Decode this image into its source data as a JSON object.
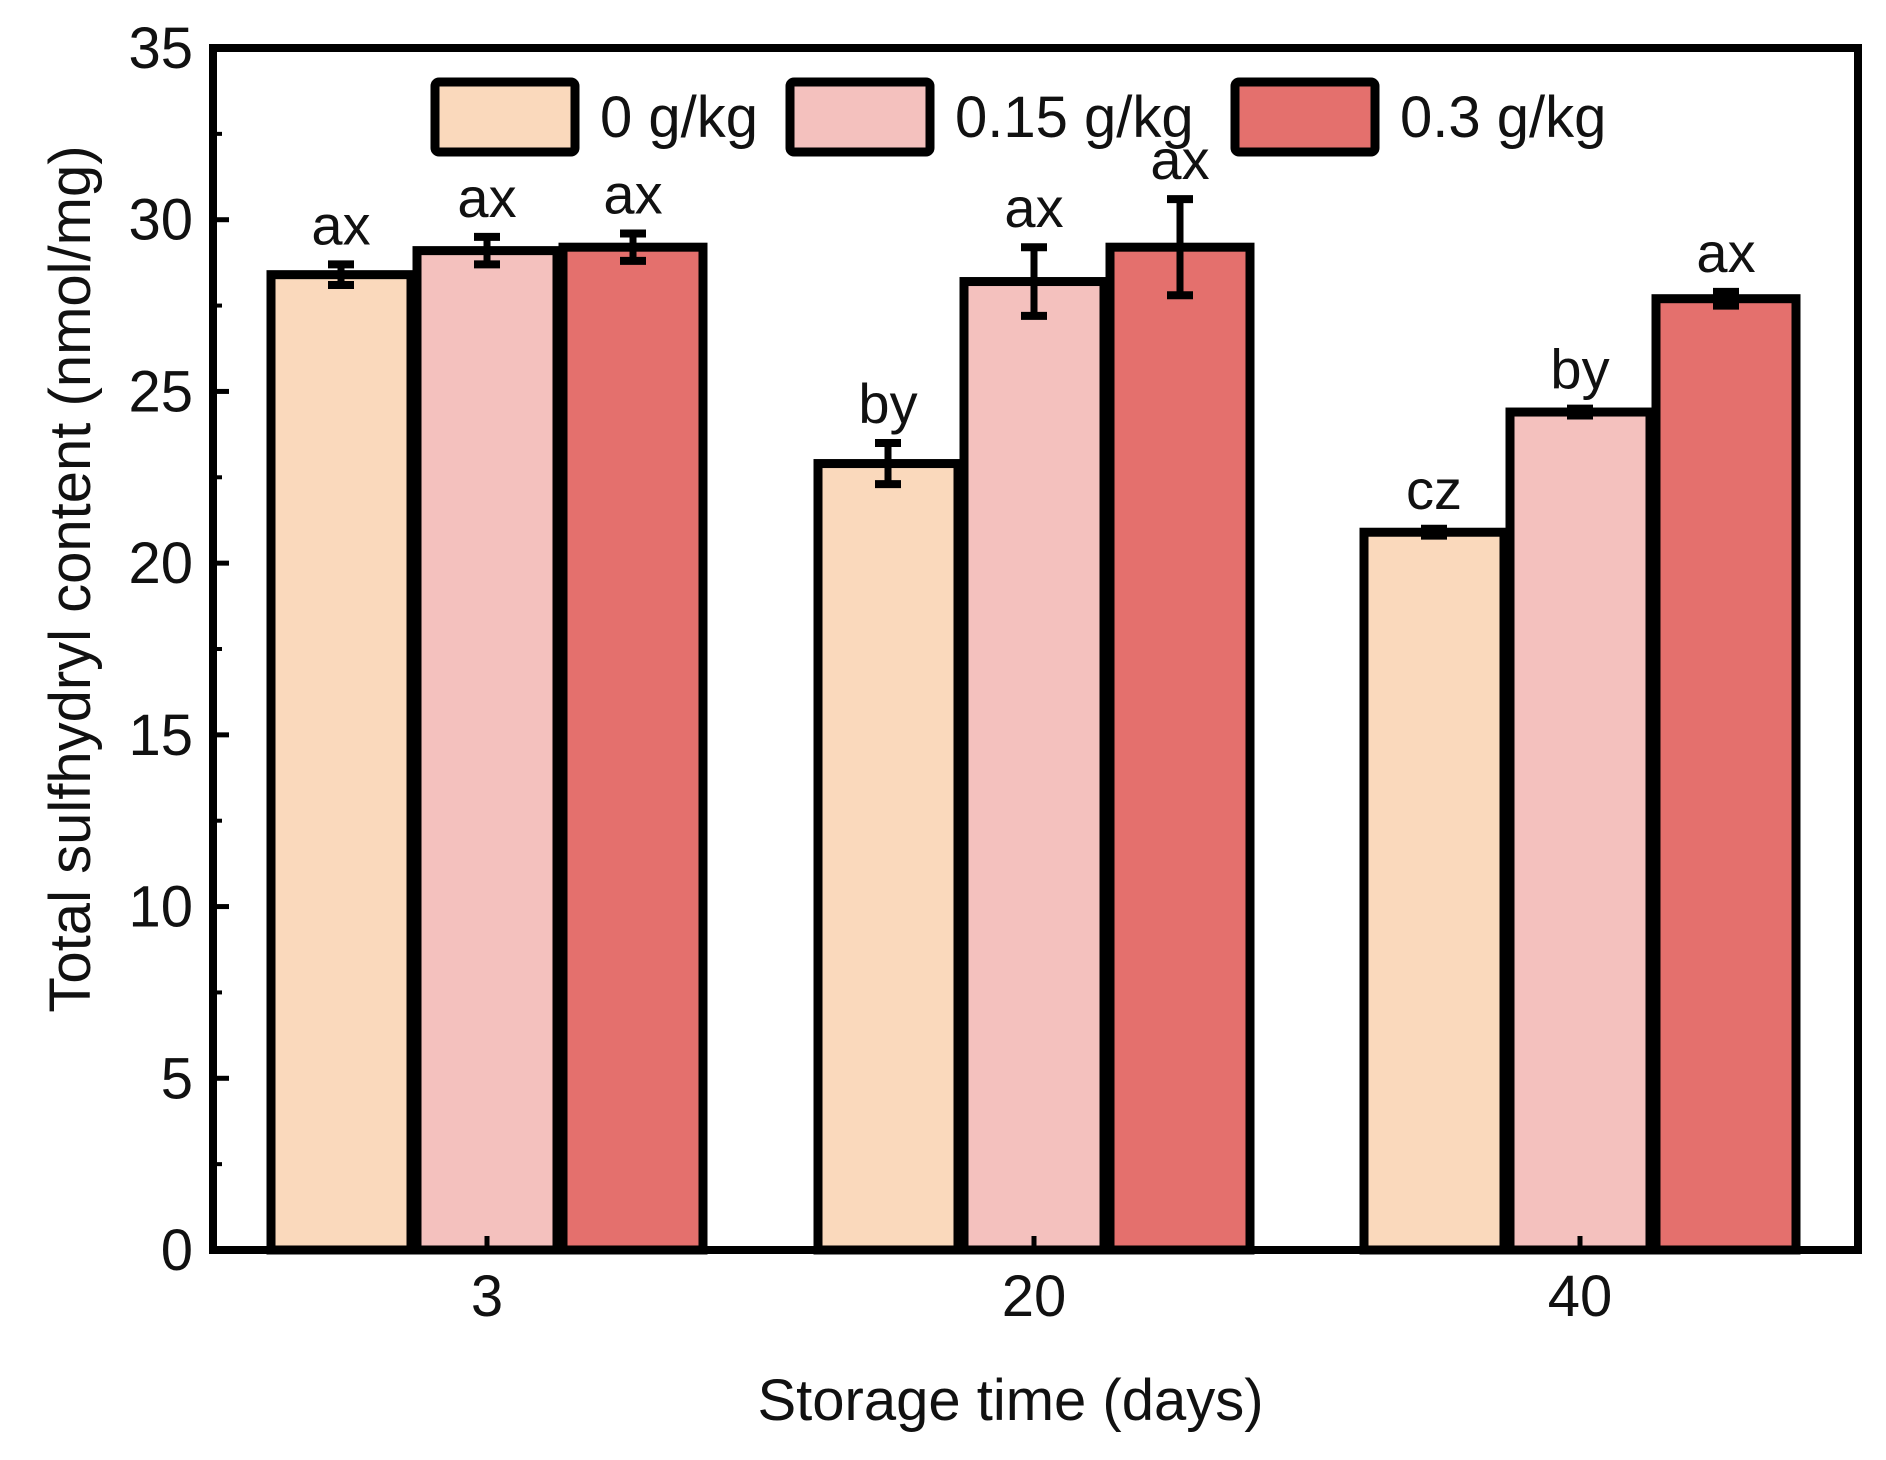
{
  "chart_data": {
    "type": "bar",
    "title": "",
    "xlabel": "Storage time (days)",
    "ylabel": "Total sulfhydryl content (nmol/mg)",
    "categories": [
      "3",
      "20",
      "40"
    ],
    "ylim": [
      0,
      35
    ],
    "yticks": [
      0,
      5,
      10,
      15,
      20,
      25,
      30,
      35
    ],
    "ytick_labels": [
      "0",
      "5",
      "10",
      "15",
      "20",
      "25",
      "30",
      "35"
    ],
    "grid": false,
    "legend_position": "top",
    "series": [
      {
        "name": "0 g/kg",
        "color": "#FAD9BC",
        "values": [
          28.4,
          22.9,
          20.9
        ],
        "errors": [
          0.3,
          0.6,
          0.1
        ],
        "labels": [
          "ax",
          "by",
          "cz"
        ]
      },
      {
        "name": "0.15 g/kg",
        "color": "#F4C1BE",
        "values": [
          29.1,
          28.2,
          24.4
        ],
        "errors": [
          0.4,
          1.0,
          0.1
        ],
        "labels": [
          "ax",
          "ax",
          "by"
        ]
      },
      {
        "name": "0.3 g/kg",
        "color": "#E4706D",
        "values": [
          29.2,
          29.2,
          27.7
        ],
        "errors": [
          0.4,
          1.4,
          0.2
        ],
        "labels": [
          "ax",
          "ax",
          "ax"
        ]
      }
    ]
  }
}
